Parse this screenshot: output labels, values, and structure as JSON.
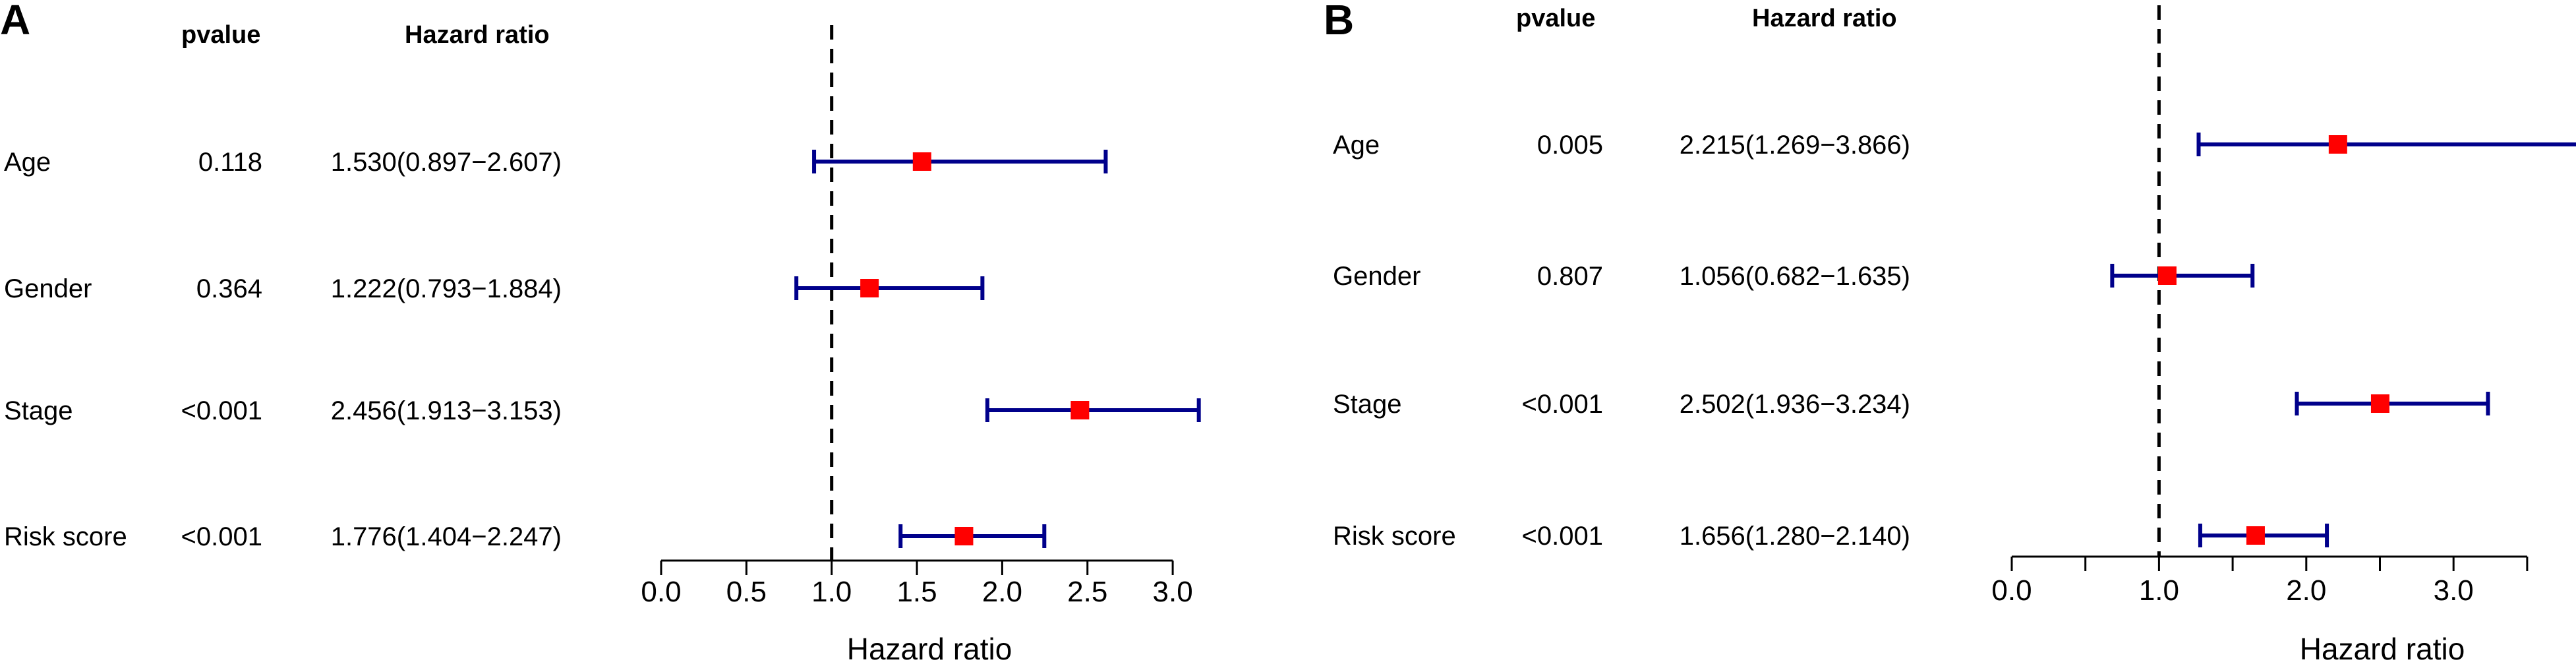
{
  "chart_data": [
    {
      "type": "forest",
      "panel": "A",
      "column_headers": {
        "pvalue": "pvalue",
        "hr": "Hazard ratio"
      },
      "xlabel": "Hazard ratio",
      "xlim": [
        0,
        3.0
      ],
      "reference_line": 1.0,
      "ticks": [
        0.0,
        0.5,
        1.0,
        1.5,
        2.0,
        2.5,
        3.0
      ],
      "tick_labels": [
        "0.0",
        "0.5",
        "1.0",
        "1.5",
        "2.0",
        "2.5",
        "3.0"
      ],
      "rows": [
        {
          "label": "Age",
          "pvalue": "0.118",
          "hr_text": "1.530(0.897−2.607)",
          "hr": 1.53,
          "lo": 0.897,
          "hi": 2.607
        },
        {
          "label": "Gender",
          "pvalue": "0.364",
          "hr_text": "1.222(0.793−1.884)",
          "hr": 1.222,
          "lo": 0.793,
          "hi": 1.884
        },
        {
          "label": "Stage",
          "pvalue": "<0.001",
          "hr_text": "2.456(1.913−3.153)",
          "hr": 2.456,
          "lo": 1.913,
          "hi": 3.153
        },
        {
          "label": "Risk score",
          "pvalue": "<0.001",
          "hr_text": "1.776(1.404−2.247)",
          "hr": 1.776,
          "lo": 1.404,
          "hi": 2.247
        }
      ]
    },
    {
      "type": "forest",
      "panel": "B",
      "column_headers": {
        "pvalue": "pvalue",
        "hr": "Hazard ratio"
      },
      "xlabel": "Hazard ratio",
      "xlim": [
        0,
        3.5
      ],
      "reference_line": 1.0,
      "ticks": [
        0.0,
        0.5,
        1.0,
        1.5,
        2.0,
        2.5,
        3.0,
        3.5
      ],
      "tick_labels": [
        "0.0",
        "",
        "1.0",
        "",
        "2.0",
        "",
        "3.0",
        ""
      ],
      "rows": [
        {
          "label": "Age",
          "pvalue": "0.005",
          "hr_text": "2.215(1.269−3.866)",
          "hr": 2.215,
          "lo": 1.269,
          "hi": 3.866
        },
        {
          "label": "Gender",
          "pvalue": "0.807",
          "hr_text": "1.056(0.682−1.635)",
          "hr": 1.056,
          "lo": 0.682,
          "hi": 1.635
        },
        {
          "label": "Stage",
          "pvalue": "<0.001",
          "hr_text": "2.502(1.936−3.234)",
          "hr": 2.502,
          "lo": 1.936,
          "hi": 3.234
        },
        {
          "label": "Risk score",
          "pvalue": "<0.001",
          "hr_text": "1.656(1.280−2.140)",
          "hr": 1.656,
          "lo": 1.28,
          "hi": 2.14
        }
      ]
    }
  ],
  "colors": {
    "ci_line": "#00008B",
    "point": "#FF0000",
    "axis": "#000000"
  }
}
